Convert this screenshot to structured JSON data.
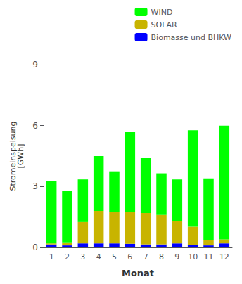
{
  "chart_data": {
    "type": "bar",
    "stacked": true,
    "xlabel": "Monat",
    "ylabel": "Stromeinspeisung\n[GWh]",
    "categories": [
      "1",
      "2",
      "3",
      "4",
      "5",
      "6",
      "7",
      "8",
      "9",
      "10",
      "11",
      "12"
    ],
    "series": [
      {
        "name": "Biomasse und BHKW",
        "color": "#0000FF",
        "values": [
          0.15,
          0.1,
          0.2,
          0.2,
          0.2,
          0.18,
          0.15,
          0.15,
          0.2,
          0.12,
          0.1,
          0.2
        ]
      },
      {
        "name": "SOLAR",
        "color": "#C8B400",
        "values": [
          0.05,
          0.15,
          1.05,
          1.6,
          1.55,
          1.55,
          1.55,
          1.45,
          1.1,
          0.9,
          0.25,
          0.2
        ]
      },
      {
        "name": "WIND",
        "color": "#00FF00",
        "values": [
          3.05,
          2.55,
          2.1,
          2.7,
          2.0,
          3.95,
          2.7,
          2.05,
          2.05,
          4.75,
          3.05,
          5.6
        ]
      }
    ],
    "ylim": [
      0,
      9
    ],
    "yticks": [
      0,
      3,
      6,
      9
    ],
    "grid": false,
    "legend": "upper right"
  }
}
